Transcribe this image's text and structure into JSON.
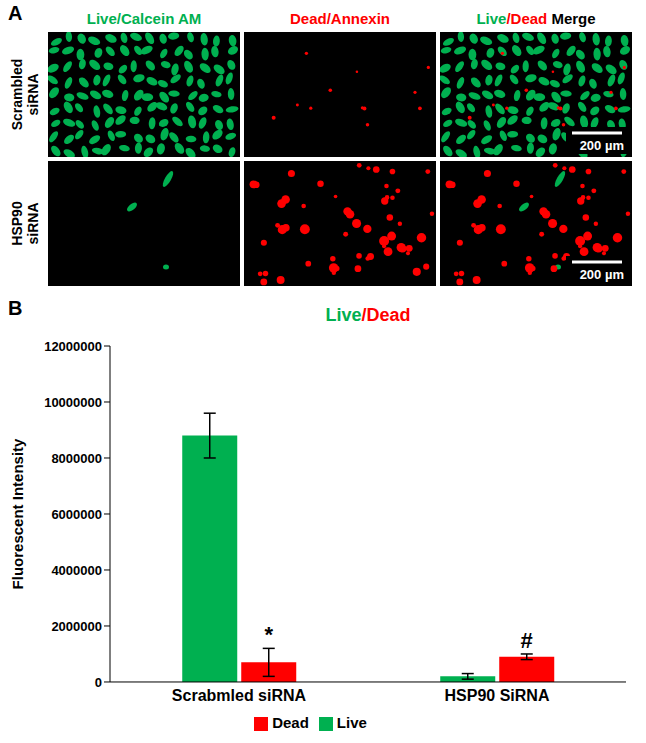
{
  "panel_a": {
    "letter": "A",
    "column_heads": [
      [
        {
          "text": "Live/Calcein AM",
          "color": "#00b050"
        }
      ],
      [
        {
          "text": "Dead/Annexin",
          "color": "#ff0000"
        }
      ],
      [
        {
          "text": "Live",
          "color": "#00b050"
        },
        {
          "text": "/Dead",
          "color": "#ff0000"
        },
        {
          "text": " Merge",
          "color": "#000000"
        }
      ]
    ],
    "rows": [
      {
        "label": "Scrambled siRNA",
        "scale_bar": "200 µm"
      },
      {
        "label": "HSP90 siRNA",
        "scale_bar": "200 µm"
      }
    ]
  },
  "chart_data": {
    "type": "bar",
    "letter": "B",
    "title": "Live/Dead",
    "y_label": "Fluorescent Intensity",
    "categories": [
      "Scrabmled siRNA",
      "HSP90 SiRNA"
    ],
    "series": [
      {
        "name": "Live",
        "color": "#00b050",
        "values": [
          8800000,
          200000
        ],
        "errors": [
          800000,
          100000
        ]
      },
      {
        "name": "Dead",
        "color": "#ff0000",
        "values": [
          700000,
          900000
        ],
        "errors": [
          500000,
          100000
        ],
        "annotations": [
          "*",
          "#"
        ]
      }
    ],
    "ylim": [
      0,
      12000000
    ],
    "yticks": [
      0,
      2000000,
      4000000,
      6000000,
      8000000,
      10000000,
      12000000
    ],
    "legend": "bottom",
    "grid": false
  }
}
